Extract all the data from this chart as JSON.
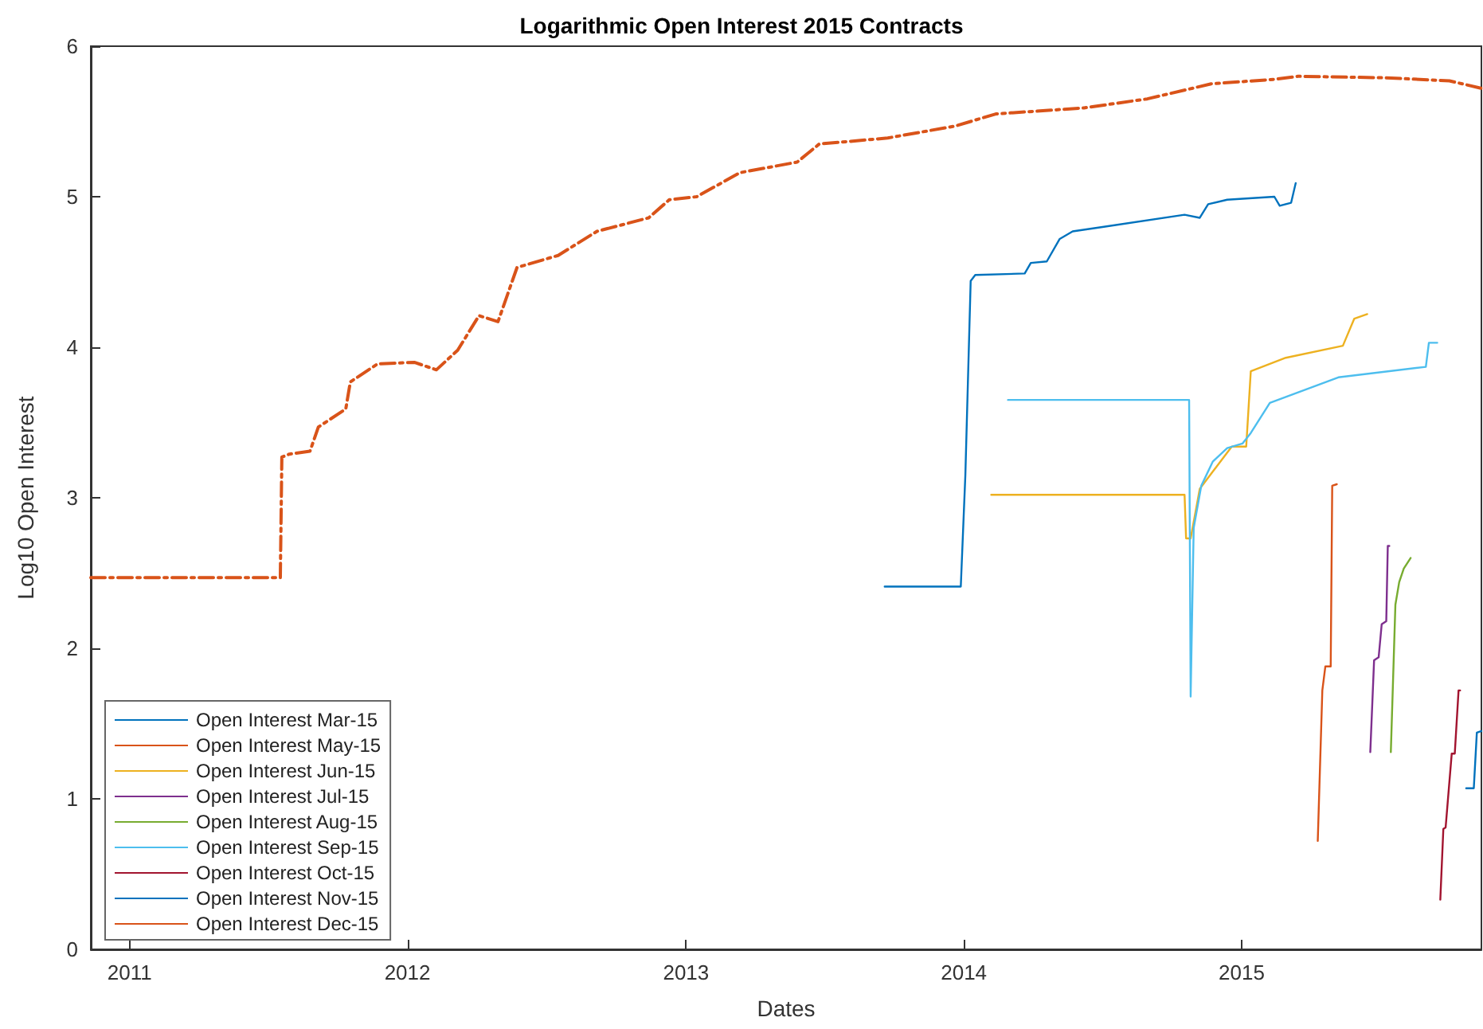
{
  "chart_data": {
    "type": "line",
    "title": "Logarithmic Open Interest 2015 Contracts",
    "xlabel": "Dates",
    "ylabel": "Log10 Open Interest",
    "xlim": [
      "2010-11-11",
      "2015-11-12"
    ],
    "xticks": [
      "2011",
      "2012",
      "2013",
      "2014",
      "2015"
    ],
    "ylim": [
      0,
      6
    ],
    "yticks": [
      0,
      1,
      2,
      3,
      4,
      5,
      6
    ],
    "grid": false,
    "legend": "bottom left",
    "marker": "none",
    "series": [
      {
        "name": "Open Interest Mar-15",
        "color": "#0072bd",
        "x": [
          "2013-09-19",
          "2013-12-28",
          "2014-01-03",
          "2014-01-10",
          "2014-01-16",
          "2014-03-22",
          "2014-03-30",
          "2014-04-20",
          "2014-05-07",
          "2014-05-24",
          "2014-07-04",
          "2014-10-18",
          "2014-11-07",
          "2014-11-18",
          "2014-12-13",
          "2015-02-13",
          "2015-02-20",
          "2015-03-07",
          "2015-03-13"
        ],
        "values": [
          2.41,
          2.41,
          3.15,
          4.44,
          4.48,
          4.49,
          4.56,
          4.57,
          4.72,
          4.77,
          4.8,
          4.88,
          4.86,
          4.95,
          4.98,
          5.0,
          4.94,
          4.96,
          5.09
        ]
      },
      {
        "name": "Open Interest May-15",
        "color": "#d95319",
        "x": [
          "2015-04-11",
          "2015-04-17",
          "2015-04-21",
          "2015-04-28",
          "2015-04-30",
          "2015-05-06"
        ],
        "values": [
          0.72,
          1.72,
          1.88,
          1.88,
          3.08,
          3.09
        ]
      },
      {
        "name": "Open Interest Jun-15",
        "color": "#edb120",
        "x": [
          "2014-02-06",
          "2014-10-18",
          "2014-10-20",
          "2014-10-26",
          "2014-11-07",
          "2014-12-19",
          "2015-01-07",
          "2015-01-13",
          "2015-02-28",
          "2015-05-14",
          "2015-05-29",
          "2015-06-15"
        ],
        "values": [
          3.02,
          3.02,
          2.73,
          2.73,
          3.06,
          3.34,
          3.34,
          3.84,
          3.93,
          4.01,
          4.19,
          4.22
        ]
      },
      {
        "name": "Open Interest Jul-15",
        "color": "#7e2f8e",
        "x": [
          "2015-06-19",
          "2015-06-24",
          "2015-06-30",
          "2015-07-04",
          "2015-07-10",
          "2015-07-12",
          "2015-07-14"
        ],
        "values": [
          1.31,
          1.92,
          1.94,
          2.16,
          2.18,
          2.68,
          2.68
        ]
      },
      {
        "name": "Open Interest Aug-15",
        "color": "#77ac30",
        "x": [
          "2015-07-16",
          "2015-07-22",
          "2015-07-27",
          "2015-08-02",
          "2015-08-11"
        ],
        "values": [
          1.31,
          2.29,
          2.44,
          2.53,
          2.6
        ]
      },
      {
        "name": "Open Interest Sep-15",
        "color": "#4dbeee",
        "x": [
          "2014-02-28",
          "2014-10-24",
          "2014-10-26",
          "2014-10-30",
          "2014-11-09",
          "2014-11-24",
          "2014-12-13",
          "2015-01-02",
          "2015-01-13",
          "2015-02-07",
          "2015-05-08",
          "2015-08-31",
          "2015-09-04",
          "2015-09-15"
        ],
        "values": [
          3.65,
          3.65,
          1.68,
          2.8,
          3.08,
          3.24,
          3.33,
          3.36,
          3.43,
          3.63,
          3.8,
          3.87,
          4.03,
          4.03
        ]
      },
      {
        "name": "Open Interest Oct-15",
        "color": "#a2142f",
        "x": [
          "2015-09-19",
          "2015-09-23",
          "2015-09-26",
          "2015-10-04",
          "2015-10-08",
          "2015-10-13",
          "2015-10-15"
        ],
        "values": [
          0.33,
          0.8,
          0.81,
          1.3,
          1.3,
          1.72,
          1.72
        ]
      },
      {
        "name": "Open Interest Nov-15",
        "color": "#0072bd",
        "x": [
          "2015-10-23",
          "2015-11-02",
          "2015-11-06",
          "2015-11-12"
        ],
        "values": [
          1.07,
          1.07,
          1.44,
          1.45
        ]
      },
      {
        "name": "Open Interest Dec-15",
        "color": "#d95319",
        "line_style": "dashed",
        "x": [
          "2010-11-11",
          "2011-07-18",
          "2011-07-20",
          "2011-07-30",
          "2011-08-26",
          "2011-09-06",
          "2011-10-12",
          "2011-10-18",
          "2011-11-23",
          "2012-01-10",
          "2012-02-08",
          "2012-03-07",
          "2012-04-04",
          "2012-04-29",
          "2012-05-24",
          "2012-07-17",
          "2012-09-06",
          "2012-11-13",
          "2012-12-10",
          "2013-01-15",
          "2013-03-13",
          "2013-05-27",
          "2013-06-25",
          "2013-09-23",
          "2013-12-21",
          "2014-02-12",
          "2014-06-08",
          "2014-08-30",
          "2014-11-22",
          "2015-02-13",
          "2015-03-16",
          "2015-07-09",
          "2015-10-01",
          "2015-11-12"
        ],
        "values": [
          2.47,
          2.47,
          3.27,
          3.29,
          3.31,
          3.47,
          3.59,
          3.77,
          3.89,
          3.9,
          3.85,
          3.98,
          4.21,
          4.17,
          4.53,
          4.61,
          4.77,
          4.86,
          4.98,
          5.0,
          5.16,
          5.23,
          5.35,
          5.39,
          5.47,
          5.55,
          5.59,
          5.65,
          5.75,
          5.78,
          5.8,
          5.79,
          5.77,
          5.72
        ]
      }
    ]
  }
}
